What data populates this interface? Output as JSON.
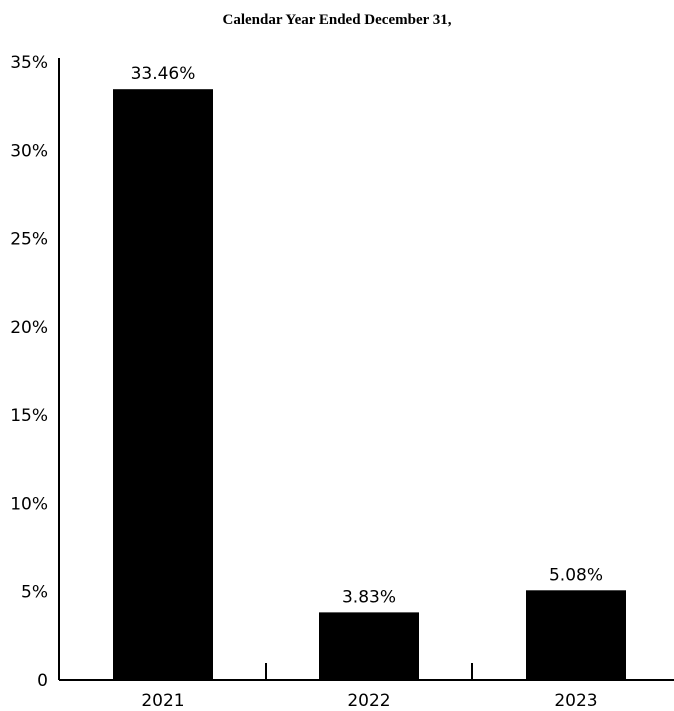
{
  "chart_data": {
    "type": "bar",
    "title": "Calendar Year Ended December 31,",
    "categories": [
      "2021",
      "2022",
      "2023"
    ],
    "values": [
      33.46,
      3.83,
      5.08
    ],
    "data_labels": [
      "33.46%",
      "3.83%",
      "5.08%"
    ],
    "y_ticks": [
      {
        "value": 0,
        "label": "0"
      },
      {
        "value": 5,
        "label": "5%"
      },
      {
        "value": 10,
        "label": "10%"
      },
      {
        "value": 15,
        "label": "15%"
      },
      {
        "value": 20,
        "label": "20%"
      },
      {
        "value": 25,
        "label": "25%"
      },
      {
        "value": 30,
        "label": "30%"
      },
      {
        "value": 35,
        "label": "35%"
      }
    ],
    "ylim": [
      0,
      35
    ],
    "xlabel": "",
    "ylabel": "",
    "grid": false,
    "bar_color": "#000000"
  }
}
